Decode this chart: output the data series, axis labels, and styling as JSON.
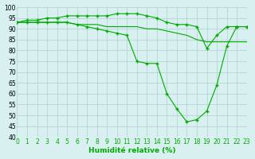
{
  "line1_x": [
    0,
    1,
    2,
    3,
    4,
    5,
    6,
    7,
    8,
    9,
    10,
    11,
    12,
    13,
    14,
    15,
    16,
    17,
    18,
    19,
    20,
    21,
    22,
    23
  ],
  "line1_y": [
    93,
    94,
    94,
    95,
    95,
    96,
    96,
    96,
    96,
    96,
    97,
    97,
    97,
    96,
    95,
    93,
    92,
    92,
    91,
    81,
    87,
    91,
    91,
    91
  ],
  "line2_x": [
    0,
    1,
    2,
    3,
    4,
    5,
    6,
    7,
    8,
    9,
    10,
    11,
    12,
    13,
    14,
    15,
    16,
    17,
    18,
    19,
    20,
    21,
    22,
    23
  ],
  "line2_y": [
    93,
    93,
    93,
    93,
    93,
    93,
    92,
    92,
    92,
    91,
    91,
    91,
    91,
    90,
    90,
    89,
    88,
    87,
    85,
    84,
    84,
    84,
    84,
    84
  ],
  "line3_x": [
    0,
    1,
    2,
    3,
    4,
    5,
    6,
    7,
    8,
    9,
    10,
    11,
    12,
    13,
    14,
    15,
    16,
    17,
    18,
    19,
    20,
    21,
    22,
    23
  ],
  "line3_y": [
    93,
    93,
    93,
    93,
    93,
    93,
    92,
    91,
    90,
    89,
    88,
    87,
    75,
    74,
    74,
    60,
    53,
    47,
    48,
    52,
    64,
    82,
    91,
    91
  ],
  "line_color": "#00aa00",
  "marker": "+",
  "markersize": 3,
  "markeredgewidth": 1.0,
  "linewidth": 0.8,
  "xlabel": "Humidité relative (%)",
  "ylim": [
    40,
    100
  ],
  "xlim": [
    0,
    23
  ],
  "yticks": [
    40,
    45,
    50,
    55,
    60,
    65,
    70,
    75,
    80,
    85,
    90,
    95,
    100
  ],
  "xticks": [
    0,
    1,
    2,
    3,
    4,
    5,
    6,
    7,
    8,
    9,
    10,
    11,
    12,
    13,
    14,
    15,
    16,
    17,
    18,
    19,
    20,
    21,
    22,
    23
  ],
  "bg_color": "#d8f0f0",
  "grid_color": "#b0d0d0",
  "tick_fontsize": 5.5,
  "xlabel_fontsize": 6.5
}
